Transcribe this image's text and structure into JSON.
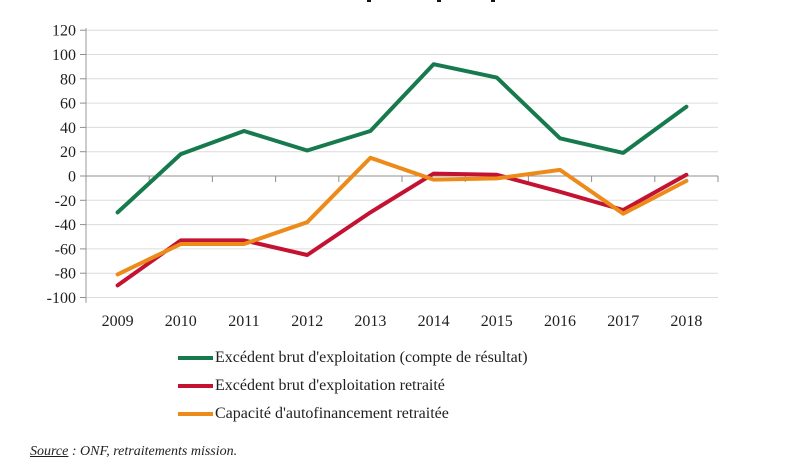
{
  "chart_data": {
    "type": "line",
    "title": "",
    "categories": [
      "2009",
      "2010",
      "2011",
      "2012",
      "2013",
      "2014",
      "2015",
      "2016",
      "2017",
      "2018"
    ],
    "series": [
      {
        "name": "Excédent brut d'exploitation (compte de résultat)",
        "color": "#177A4F",
        "values": [
          -30,
          18,
          37,
          21,
          37,
          92,
          81,
          31,
          19,
          57
        ]
      },
      {
        "name": "Excédent brut d'exploitation retraité",
        "color": "#C41233",
        "values": [
          -90,
          -53,
          -53,
          -65,
          -30,
          2,
          1,
          -13,
          -28,
          1
        ]
      },
      {
        "name": "Capacité d'autofinancement retraitée",
        "color": "#EC8B1A",
        "values": [
          -81,
          -56,
          -56,
          -38,
          15,
          -3,
          -2,
          5,
          -31,
          -4
        ]
      }
    ],
    "xlabel": "",
    "ylabel": "",
    "ylim": [
      -100,
      120
    ],
    "yticks": [
      120,
      100,
      80,
      60,
      40,
      20,
      0,
      -20,
      -40,
      -60,
      -80,
      -100
    ],
    "grid": "horizontal",
    "legend_position": "bottom-left",
    "colors": {
      "gridline": "#DCDCDC",
      "axis": "#999999",
      "zero_line": "#8F8F8F",
      "tick": "#8F8F8F",
      "label_text": "#1F1F1F"
    }
  },
  "source": {
    "label": "Source",
    "text": " : ONF, retraitements mission."
  }
}
